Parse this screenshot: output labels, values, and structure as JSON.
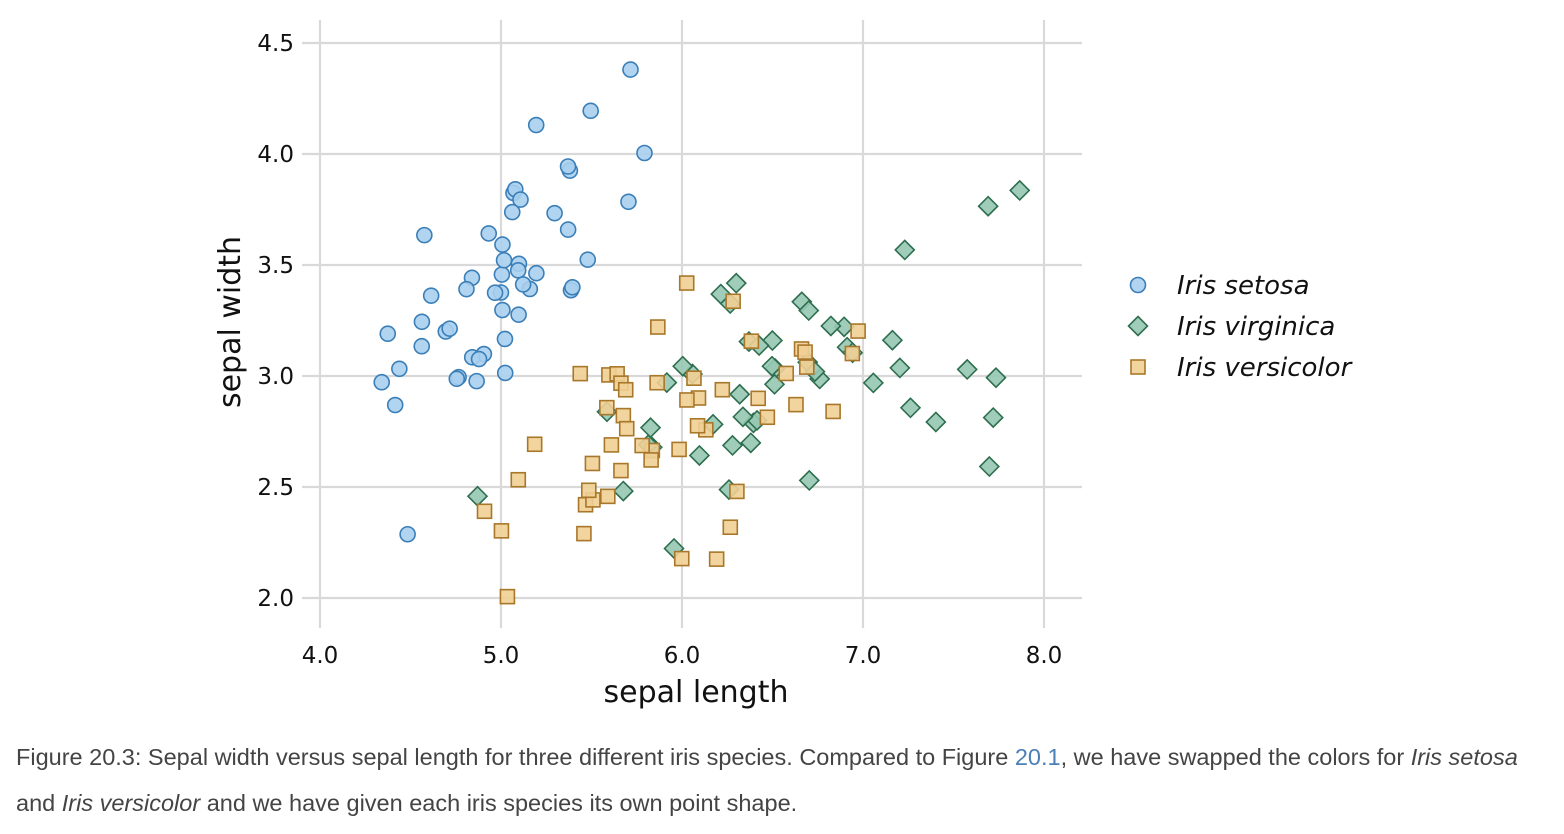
{
  "colors": {
    "setosa_fill": "#a9cfee",
    "setosa_stroke": "#3b7fb8",
    "virginica_fill": "#96c8b2",
    "virginica_stroke": "#2e6e4f",
    "versicolor_fill": "#f0cf93",
    "versicolor_stroke": "#a8772a",
    "grid": "#d9d9d9",
    "link": "#4a7fb8"
  },
  "caption": {
    "part1": "Figure 20.3: Sepal width versus sepal length for three different iris species. Compared to Figure ",
    "ref": "20.1",
    "part2": ", we have swapped the colors for ",
    "species1": "Iris setosa",
    "part3": " and ",
    "species2": "Iris versicolor",
    "part4": " and we have given each iris species its own point shape."
  },
  "chart_data": {
    "type": "scatter",
    "xlabel": "sepal length",
    "ylabel": "sepal width",
    "xlim": [
      3.95,
      8.2
    ],
    "ylim": [
      1.88,
      4.6
    ],
    "xticks": [
      4.0,
      5.0,
      6.0,
      7.0,
      8.0
    ],
    "xtick_labels": [
      "4.0",
      "5.0",
      "6.0",
      "7.0",
      "8.0"
    ],
    "yticks": [
      2.0,
      2.5,
      3.0,
      3.5,
      4.0,
      4.5
    ],
    "ytick_labels": [
      "2.0",
      "2.5",
      "3.0",
      "3.5",
      "4.0",
      "4.5"
    ],
    "grid": true,
    "legend_position": "right",
    "series": [
      {
        "name": "Iris setosa",
        "marker": "circle",
        "points": [
          [
            5.1,
            3.5
          ],
          [
            4.9,
            3.0
          ],
          [
            4.7,
            3.2
          ],
          [
            4.6,
            3.1
          ],
          [
            5.0,
            3.6
          ],
          [
            5.4,
            3.9
          ],
          [
            4.6,
            3.4
          ],
          [
            5.0,
            3.4
          ],
          [
            4.4,
            2.9
          ],
          [
            4.9,
            3.1
          ],
          [
            5.4,
            3.7
          ],
          [
            4.8,
            3.4
          ],
          [
            4.8,
            3.0
          ],
          [
            4.3,
            3.0
          ],
          [
            5.8,
            4.0
          ],
          [
            5.7,
            4.4
          ],
          [
            5.4,
            3.9
          ],
          [
            5.1,
            3.5
          ],
          [
            5.7,
            3.8
          ],
          [
            5.1,
            3.8
          ],
          [
            5.4,
            3.4
          ],
          [
            5.1,
            3.7
          ],
          [
            4.6,
            3.6
          ],
          [
            5.1,
            3.3
          ],
          [
            4.8,
            3.4
          ],
          [
            5.0,
            3.0
          ],
          [
            5.0,
            3.4
          ],
          [
            5.2,
            3.5
          ],
          [
            5.2,
            3.4
          ],
          [
            4.7,
            3.2
          ],
          [
            4.8,
            3.1
          ],
          [
            5.4,
            3.4
          ],
          [
            5.2,
            4.1
          ],
          [
            5.5,
            4.2
          ],
          [
            4.9,
            3.1
          ],
          [
            5.0,
            3.2
          ],
          [
            5.5,
            3.5
          ],
          [
            4.9,
            3.6
          ],
          [
            4.4,
            3.0
          ],
          [
            5.1,
            3.4
          ],
          [
            5.0,
            3.5
          ],
          [
            4.5,
            2.3
          ],
          [
            4.4,
            3.2
          ],
          [
            5.0,
            3.5
          ],
          [
            5.1,
            3.8
          ],
          [
            4.8,
            3.0
          ],
          [
            5.1,
            3.8
          ],
          [
            4.6,
            3.2
          ],
          [
            5.3,
            3.7
          ],
          [
            5.0,
            3.3
          ]
        ]
      },
      {
        "name": "Iris virginica",
        "marker": "diamond",
        "points": [
          [
            6.3,
            3.3
          ],
          [
            5.8,
            2.7
          ],
          [
            7.1,
            3.0
          ],
          [
            6.3,
            2.9
          ],
          [
            6.5,
            3.0
          ],
          [
            7.6,
            3.0
          ],
          [
            4.9,
            2.5
          ],
          [
            7.3,
            2.9
          ],
          [
            6.7,
            2.5
          ],
          [
            7.2,
            3.6
          ],
          [
            6.5,
            3.2
          ],
          [
            6.4,
            2.7
          ],
          [
            6.8,
            3.0
          ],
          [
            5.7,
            2.5
          ],
          [
            5.8,
            2.8
          ],
          [
            6.4,
            3.2
          ],
          [
            6.5,
            3.0
          ],
          [
            7.7,
            3.8
          ],
          [
            7.7,
            2.6
          ],
          [
            6.0,
            2.2
          ],
          [
            6.9,
            3.2
          ],
          [
            5.6,
            2.8
          ],
          [
            7.7,
            2.8
          ],
          [
            6.3,
            2.7
          ],
          [
            6.7,
            3.3
          ],
          [
            7.2,
            3.2
          ],
          [
            6.2,
            2.8
          ],
          [
            6.1,
            3.0
          ],
          [
            6.4,
            2.8
          ],
          [
            7.2,
            3.0
          ],
          [
            7.4,
            2.8
          ],
          [
            7.9,
            3.8
          ],
          [
            6.4,
            2.8
          ],
          [
            6.3,
            2.8
          ],
          [
            6.1,
            2.6
          ],
          [
            7.7,
            3.0
          ],
          [
            6.3,
            3.4
          ],
          [
            6.4,
            3.1
          ],
          [
            6.0,
            3.0
          ],
          [
            6.9,
            3.1
          ],
          [
            6.7,
            3.1
          ],
          [
            6.9,
            3.1
          ],
          [
            5.8,
            2.7
          ],
          [
            6.8,
            3.2
          ],
          [
            6.7,
            3.3
          ],
          [
            6.7,
            3.0
          ],
          [
            6.3,
            2.5
          ],
          [
            6.5,
            3.0
          ],
          [
            6.2,
            3.4
          ],
          [
            5.9,
            3.0
          ]
        ]
      },
      {
        "name": "Iris versicolor",
        "marker": "square",
        "points": [
          [
            7.0,
            3.2
          ],
          [
            6.4,
            3.2
          ],
          [
            6.9,
            3.1
          ],
          [
            5.5,
            2.3
          ],
          [
            6.5,
            2.8
          ],
          [
            5.7,
            2.8
          ],
          [
            6.3,
            3.3
          ],
          [
            4.9,
            2.4
          ],
          [
            6.6,
            2.9
          ],
          [
            5.2,
            2.7
          ],
          [
            5.0,
            2.0
          ],
          [
            5.9,
            3.0
          ],
          [
            6.0,
            2.2
          ],
          [
            6.1,
            2.9
          ],
          [
            5.6,
            2.9
          ],
          [
            6.7,
            3.1
          ],
          [
            5.6,
            3.0
          ],
          [
            5.8,
            2.7
          ],
          [
            6.2,
            2.2
          ],
          [
            5.6,
            2.5
          ],
          [
            5.9,
            3.2
          ],
          [
            6.1,
            2.8
          ],
          [
            6.3,
            2.5
          ],
          [
            6.1,
            2.8
          ],
          [
            6.4,
            2.9
          ],
          [
            6.6,
            3.0
          ],
          [
            6.8,
            2.8
          ],
          [
            6.7,
            3.0
          ],
          [
            6.0,
            2.9
          ],
          [
            5.7,
            2.6
          ],
          [
            5.5,
            2.4
          ],
          [
            5.5,
            2.4
          ],
          [
            5.8,
            2.7
          ],
          [
            6.0,
            2.7
          ],
          [
            5.4,
            3.0
          ],
          [
            6.0,
            3.4
          ],
          [
            6.7,
            3.1
          ],
          [
            6.3,
            2.3
          ],
          [
            5.6,
            3.0
          ],
          [
            5.5,
            2.5
          ],
          [
            5.5,
            2.6
          ],
          [
            6.1,
            3.0
          ],
          [
            5.8,
            2.6
          ],
          [
            5.0,
            2.3
          ],
          [
            5.6,
            2.7
          ],
          [
            5.7,
            3.0
          ],
          [
            5.7,
            2.9
          ],
          [
            6.2,
            2.9
          ],
          [
            5.1,
            2.5
          ],
          [
            5.7,
            2.8
          ]
        ]
      }
    ]
  }
}
